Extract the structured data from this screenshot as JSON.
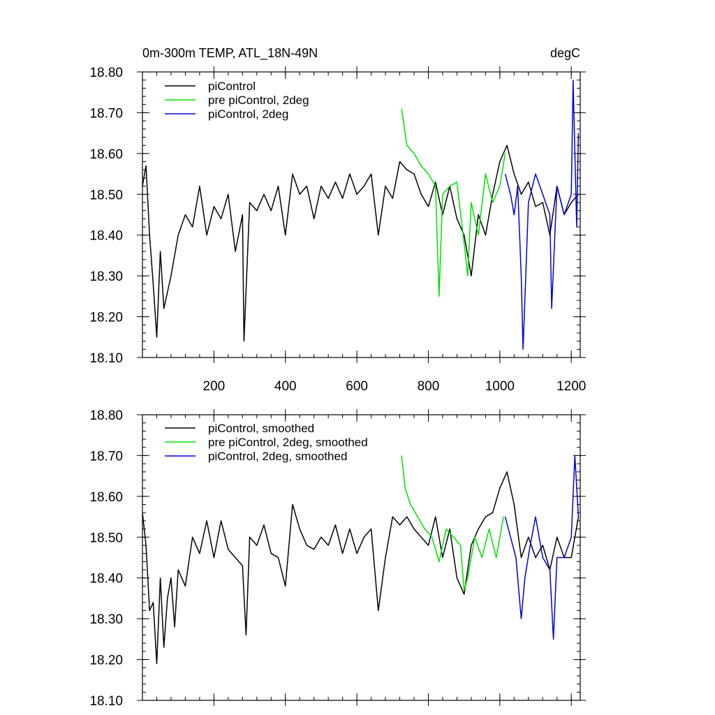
{
  "chart_data": [
    {
      "type": "line",
      "panel": "top",
      "title_left": "0m-300m TEMP, ATL_18N-49N",
      "title_right": "degC",
      "xlim": [
        0,
        1225
      ],
      "ylim": [
        18.1,
        18.8
      ],
      "x_ticks": [
        200,
        400,
        600,
        800,
        1000,
        1200
      ],
      "x_tick_labels": [
        "200",
        "400",
        "600",
        "800",
        "1000",
        "1200"
      ],
      "y_ticks": [
        18.1,
        18.2,
        18.3,
        18.4,
        18.5,
        18.6,
        18.7,
        18.8
      ],
      "y_tick_labels": [
        "18.10",
        "18.20",
        "18.30",
        "18.40",
        "18.50",
        "18.60",
        "18.70",
        "18.80"
      ],
      "series": [
        {
          "name": "piControl",
          "color": "#000000",
          "x": [
            0,
            10,
            20,
            30,
            40,
            50,
            60,
            80,
            100,
            120,
            140,
            160,
            180,
            200,
            220,
            240,
            260,
            280,
            284,
            300,
            320,
            340,
            360,
            380,
            400,
            420,
            440,
            460,
            480,
            500,
            520,
            540,
            560,
            580,
            600,
            620,
            640,
            660,
            680,
            700,
            720,
            740,
            760,
            780,
            800,
            820,
            840,
            860,
            880,
            900,
            920,
            940,
            960,
            980,
            1000,
            1020,
            1040,
            1060,
            1080,
            1100,
            1120,
            1140,
            1160,
            1180,
            1200,
            1220
          ],
          "values": [
            18.52,
            18.57,
            18.4,
            18.28,
            18.15,
            18.36,
            18.22,
            18.3,
            18.4,
            18.45,
            18.42,
            18.52,
            18.4,
            18.47,
            18.44,
            18.5,
            18.36,
            18.45,
            18.14,
            18.48,
            18.46,
            18.5,
            18.46,
            18.52,
            18.4,
            18.55,
            18.5,
            18.52,
            18.44,
            18.52,
            18.49,
            18.53,
            18.49,
            18.55,
            18.5,
            18.52,
            18.55,
            18.4,
            18.52,
            18.49,
            18.58,
            18.56,
            18.55,
            18.5,
            18.47,
            18.53,
            18.45,
            18.52,
            18.44,
            18.4,
            18.3,
            18.45,
            18.4,
            18.5,
            18.58,
            18.62,
            18.55,
            18.5,
            18.53,
            18.47,
            18.48,
            18.4,
            18.52,
            18.45,
            18.48,
            18.5
          ]
        },
        {
          "name": "pre piControl, 2deg",
          "color": "#00e000",
          "x": [
            725,
            740,
            760,
            780,
            800,
            820,
            830,
            840,
            860,
            880,
            900,
            910,
            920,
            940,
            960,
            980,
            1000,
            1015
          ],
          "values": [
            18.71,
            18.62,
            18.6,
            18.57,
            18.55,
            18.52,
            18.25,
            18.5,
            18.52,
            18.53,
            18.38,
            18.3,
            18.48,
            18.4,
            18.55,
            18.48,
            18.52,
            18.6
          ]
        },
        {
          "name": "piControl, 2deg",
          "color": "#0000d0",
          "x": [
            1015,
            1030,
            1040,
            1050,
            1060,
            1065,
            1080,
            1100,
            1120,
            1140,
            1145,
            1160,
            1180,
            1200,
            1205,
            1215,
            1220
          ],
          "values": [
            18.55,
            18.5,
            18.45,
            18.52,
            18.3,
            18.12,
            18.48,
            18.55,
            18.5,
            18.45,
            18.22,
            18.52,
            18.45,
            18.5,
            18.78,
            18.42,
            18.65
          ]
        }
      ]
    },
    {
      "type": "line",
      "panel": "bottom",
      "xlim": [
        0,
        1225
      ],
      "ylim": [
        18.1,
        18.8
      ],
      "x_ticks": [
        200,
        400,
        600,
        800,
        1000,
        1200
      ],
      "y_ticks": [
        18.1,
        18.2,
        18.3,
        18.4,
        18.5,
        18.6,
        18.7,
        18.8
      ],
      "y_tick_labels": [
        "18.10",
        "18.20",
        "18.30",
        "18.40",
        "18.50",
        "18.60",
        "18.70",
        "18.80"
      ],
      "series": [
        {
          "name": "piControl, smoothed",
          "color": "#000000",
          "x": [
            0,
            10,
            20,
            30,
            40,
            50,
            60,
            70,
            80,
            90,
            100,
            120,
            140,
            160,
            180,
            200,
            220,
            240,
            260,
            280,
            290,
            300,
            320,
            340,
            360,
            380,
            400,
            420,
            440,
            460,
            480,
            500,
            520,
            540,
            560,
            580,
            600,
            620,
            640,
            660,
            680,
            700,
            720,
            740,
            760,
            780,
            800,
            820,
            840,
            860,
            880,
            900,
            920,
            940,
            960,
            980,
            1000,
            1020,
            1040,
            1060,
            1080,
            1100,
            1120,
            1140,
            1160,
            1180,
            1200,
            1220
          ],
          "values": [
            18.56,
            18.48,
            18.32,
            18.34,
            18.19,
            18.4,
            18.23,
            18.35,
            18.4,
            18.28,
            18.42,
            18.38,
            18.5,
            18.46,
            18.54,
            18.45,
            18.54,
            18.47,
            18.45,
            18.43,
            18.26,
            18.5,
            18.48,
            18.53,
            18.46,
            18.45,
            18.38,
            18.58,
            18.52,
            18.48,
            18.47,
            18.5,
            18.48,
            18.53,
            18.46,
            18.52,
            18.46,
            18.5,
            18.52,
            18.32,
            18.45,
            18.55,
            18.53,
            18.55,
            18.52,
            18.5,
            18.48,
            18.55,
            18.45,
            18.52,
            18.4,
            18.36,
            18.48,
            18.52,
            18.55,
            18.56,
            18.62,
            18.66,
            18.58,
            18.45,
            18.5,
            18.45,
            18.48,
            18.42,
            18.5,
            18.45,
            18.45,
            18.55
          ]
        },
        {
          "name": "pre piControl, 2deg, smoothed",
          "color": "#00e000",
          "x": [
            725,
            735,
            750,
            770,
            790,
            810,
            830,
            850,
            870,
            890,
            900,
            910,
            930,
            950,
            970,
            990,
            1010
          ],
          "values": [
            18.7,
            18.62,
            18.58,
            18.55,
            18.52,
            18.5,
            18.44,
            18.52,
            18.5,
            18.48,
            18.37,
            18.4,
            18.5,
            18.45,
            18.52,
            18.45,
            18.55
          ]
        },
        {
          "name": "piControl, 2deg, smoothed",
          "color": "#0000d0",
          "x": [
            1015,
            1030,
            1045,
            1060,
            1070,
            1085,
            1100,
            1120,
            1140,
            1150,
            1160,
            1180,
            1200,
            1210,
            1220
          ],
          "values": [
            18.55,
            18.5,
            18.45,
            18.3,
            18.4,
            18.48,
            18.55,
            18.45,
            18.42,
            18.25,
            18.45,
            18.45,
            18.5,
            18.7,
            18.55
          ]
        }
      ]
    }
  ]
}
